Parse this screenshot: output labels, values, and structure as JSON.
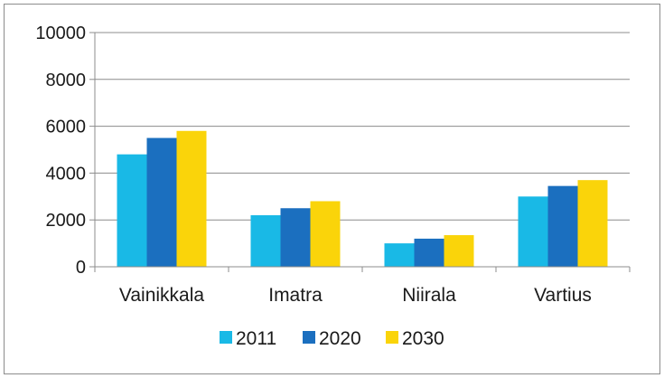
{
  "chart_data": {
    "type": "bar",
    "categories": [
      "Vainikkala",
      "Imatra",
      "Niirala",
      "Vartius"
    ],
    "series": [
      {
        "name": "2011",
        "color": "#19b9e6",
        "values": [
          4800,
          2200,
          1000,
          3000
        ]
      },
      {
        "name": "2020",
        "color": "#1b6fbf",
        "values": [
          5500,
          2500,
          1200,
          3450
        ]
      },
      {
        "name": "2030",
        "color": "#fad40a",
        "values": [
          5800,
          2800,
          1350,
          3700
        ]
      }
    ],
    "yticks": [
      "0",
      "2000",
      "4000",
      "6000",
      "8000",
      "10000"
    ],
    "ylim": [
      0,
      10000
    ],
    "grid": true,
    "legend": "bottom",
    "title": "",
    "xlabel": "",
    "ylabel": ""
  }
}
